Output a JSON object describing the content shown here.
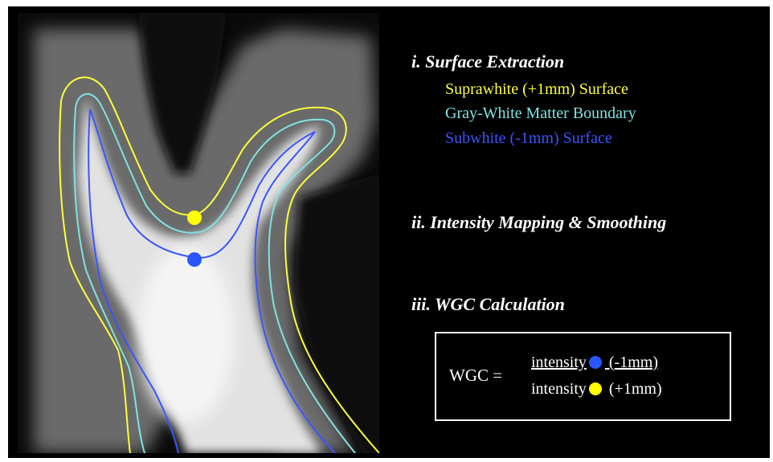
{
  "steps": [
    {
      "label": "i. Surface Extraction"
    },
    {
      "label": "ii. Intensity Mapping & Smoothing"
    },
    {
      "label": "iii. WGC Calculation"
    }
  ],
  "legend": [
    {
      "label": "Suprawhite (+1mm) Surface",
      "color": "#ffff3a"
    },
    {
      "label": "Gray-White Matter Boundary",
      "color": "#7fe3e3"
    },
    {
      "label": "Subwhite (-1mm) Surface",
      "color": "#3a55ff"
    }
  ],
  "formula": {
    "lhs": "WGC =",
    "numerator_word": "intensity",
    "numerator_suffix": " (-1mm)",
    "denominator_word": "intensity",
    "denominator_suffix": " (+1mm)"
  },
  "colors": {
    "background": "#000000",
    "suprawhite": "#ffff3a",
    "boundary": "#7fe3e3",
    "subwhite": "#3a55ff",
    "marker_blue": "#2a55ff",
    "marker_yellow": "#ffff00"
  }
}
